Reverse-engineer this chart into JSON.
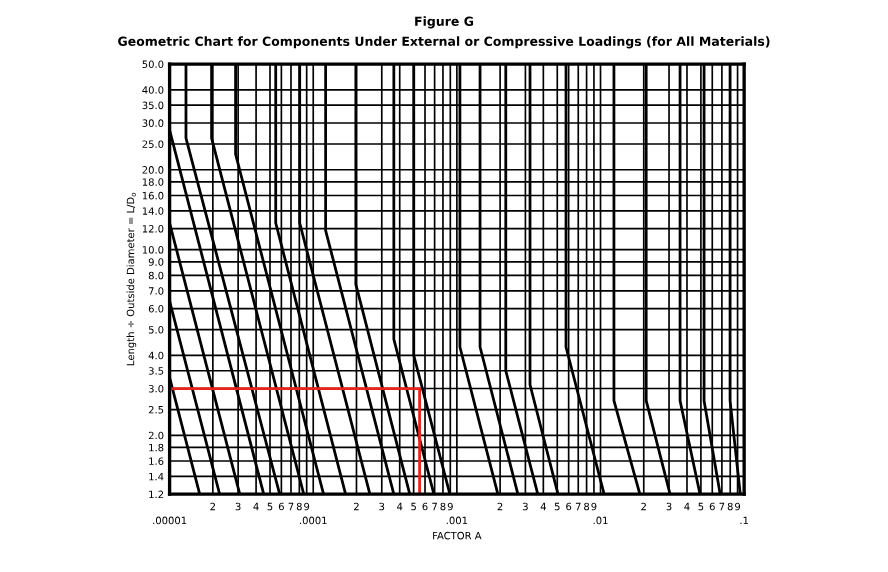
{
  "chart_data": {
    "type": "line",
    "title": "Figure G",
    "subtitle": "Geometric Chart for Components Under External or Compressive Loadings (for All Materials)",
    "xlabel": "FACTOR A",
    "ylabel": "Length ÷ Outside Diameter = L/D$_{o}$",
    "log": "xy",
    "grid": true,
    "legend": false,
    "marker": "none",
    "line_style": "solid",
    "xlim": [
      1e-05,
      0.1
    ],
    "ylim": [
      1.2,
      50
    ],
    "xticks": [
      {
        "value": 1e-05,
        "label": ".00001"
      },
      {
        "value": 2e-05,
        "label": null
      },
      {
        "value": 3e-05,
        "label": null
      },
      {
        "value": 4e-05,
        "label": null
      },
      {
        "value": 5e-05,
        "label": null
      },
      {
        "value": 6e-05,
        "label": null
      },
      {
        "value": 7e-05,
        "label": null
      },
      {
        "value": 8e-05,
        "label": null
      },
      {
        "value": 9e-05,
        "label": null
      },
      {
        "value": 0.0001,
        "label": ".0001"
      },
      {
        "value": 0.0002,
        "label": null
      },
      {
        "value": 0.0003,
        "label": null
      },
      {
        "value": 0.0004,
        "label": null
      },
      {
        "value": 0.0005,
        "label": null
      },
      {
        "value": 0.0006,
        "label": null
      },
      {
        "value": 0.0007,
        "label": null
      },
      {
        "value": 0.0008,
        "label": null
      },
      {
        "value": 0.0009,
        "label": null
      },
      {
        "value": 0.001,
        "label": ".001"
      },
      {
        "value": 0.002,
        "label": null
      },
      {
        "value": 0.003,
        "label": null
      },
      {
        "value": 0.004,
        "label": null
      },
      {
        "value": 0.005,
        "label": null
      },
      {
        "value": 0.006,
        "label": null
      },
      {
        "value": 0.007,
        "label": null
      },
      {
        "value": 0.008,
        "label": null
      },
      {
        "value": 0.009,
        "label": null
      },
      {
        "value": 0.01,
        "label": ".01"
      },
      {
        "value": 0.02,
        "label": null
      },
      {
        "value": 0.03,
        "label": null
      },
      {
        "value": 0.04,
        "label": null
      },
      {
        "value": 0.05,
        "label": null
      },
      {
        "value": 0.06,
        "label": null
      },
      {
        "value": 0.07,
        "label": null
      },
      {
        "value": 0.08,
        "label": null
      },
      {
        "value": 0.09,
        "label": null
      },
      {
        "value": 0.1,
        "label": ".1"
      }
    ],
    "annotations": [
      "2",
      "3",
      "4",
      "5",
      "6",
      "7",
      "8",
      "9",
      "2",
      "3",
      "4",
      "5",
      "6",
      "7",
      "8",
      "9",
      "2",
      "3",
      "4",
      "5",
      "6",
      "7",
      "8",
      "9",
      "2",
      "3",
      "4",
      "5",
      "6",
      "7",
      "8",
      "9"
    ],
    "yticks": [
      {
        "value": 1.2,
        "label": "1.2"
      },
      {
        "value": 1.4,
        "label": "1.4"
      },
      {
        "value": 1.6,
        "label": "1.6"
      },
      {
        "value": 1.8,
        "label": "1.8"
      },
      {
        "value": 2.0,
        "label": "2.0"
      },
      {
        "value": 2.5,
        "label": "2.5"
      },
      {
        "value": 3.0,
        "label": "3.0"
      },
      {
        "value": 3.5,
        "label": "3.5"
      },
      {
        "value": 4.0,
        "label": "4.0"
      },
      {
        "value": 5.0,
        "label": "5.0"
      },
      {
        "value": 6.0,
        "label": "6.0"
      },
      {
        "value": 7.0,
        "label": "7.0"
      },
      {
        "value": 8.0,
        "label": "8.0"
      },
      {
        "value": 9.0,
        "label": "9.0"
      },
      {
        "value": 10.0,
        "label": "10.0"
      },
      {
        "value": 12.0,
        "label": "12.0"
      },
      {
        "value": 14.0,
        "label": "14.0"
      },
      {
        "value": 16.0,
        "label": "16.0"
      },
      {
        "value": 18.0,
        "label": "18.0"
      },
      {
        "value": 20.0,
        "label": "20.0"
      },
      {
        "value": 25.0,
        "label": "25.0"
      },
      {
        "value": 30.0,
        "label": "30.0"
      },
      {
        "value": 35.0,
        "label": "35.0"
      },
      {
        "value": 40.0,
        "label": "40.0"
      },
      {
        "value": 50.0,
        "label": "50.0"
      }
    ],
    "series": [
      {
        "color": "#000000",
        "x": [
          1e-05,
          1.62e-05
        ],
        "values": [
          3.3,
          1.2
        ]
      },
      {
        "color": "#000000",
        "x": [
          1e-05,
          2.23e-05
        ],
        "values": [
          6.4,
          1.2
        ]
      },
      {
        "color": "#000000",
        "x": [
          1e-05,
          3.08e-05
        ],
        "values": [
          12.6,
          1.2
        ]
      },
      {
        "color": "#000000",
        "x": [
          1e-05,
          4.52e-05
        ],
        "values": [
          28.2,
          1.2
        ]
      },
      {
        "color": "#000000",
        "x": [
          1.3e-05,
          1.3e-05,
          5.84e-05
        ],
        "values": [
          50,
          26.3,
          1.2
        ]
      },
      {
        "color": "#000000",
        "x": [
          1.96e-05,
          1.96e-05,
          8.59e-05
        ],
        "values": [
          50,
          26.3,
          1.2
        ]
      },
      {
        "color": "#000000",
        "x": [
          2.88e-05,
          2.88e-05,
          0.000118
        ],
        "values": [
          50,
          22.9,
          1.2
        ]
      },
      {
        "color": "#000000",
        "x": [
          5.48e-05,
          5.48e-05,
          0.000168
        ],
        "values": [
          50,
          12.6,
          1.2
        ]
      },
      {
        "color": "#000000",
        "x": [
          8.05e-05,
          8.05e-05,
          0.000248
        ],
        "values": [
          50,
          12.6,
          1.2
        ]
      },
      {
        "color": "#000000",
        "x": [
          0.000122,
          0.000122,
          0.000364
        ],
        "values": [
          50,
          11.8,
          1.2
        ]
      },
      {
        "color": "#000000",
        "x": [
          0.000198,
          0.000198,
          0.00047
        ],
        "values": [
          50,
          7.4,
          1.2
        ]
      },
      {
        "color": "#000000",
        "x": [
          0.000364,
          0.000364,
          0.000692
        ],
        "values": [
          50,
          4.6,
          1.2
        ]
      },
      {
        "color": "#000000",
        "x": [
          0.000501,
          0.000501,
          0.000894
        ],
        "values": [
          50,
          4.0,
          1.2
        ]
      },
      {
        "color": "#000000",
        "x": [
          0.00105,
          0.00105,
          0.00193
        ],
        "values": [
          50,
          4.3,
          1.2
        ]
      },
      {
        "color": "#000000",
        "x": [
          0.00145,
          0.00145,
          0.00266
        ],
        "values": [
          50,
          4.3,
          1.2
        ]
      },
      {
        "color": "#000000",
        "x": [
          0.00219,
          0.00219,
          0.00366
        ],
        "values": [
          50,
          3.5,
          1.2
        ]
      },
      {
        "color": "#000000",
        "x": [
          0.00323,
          0.00323,
          0.00506
        ],
        "values": [
          50,
          3.1,
          1.2
        ]
      },
      {
        "color": "#000000",
        "x": [
          0.00575,
          0.00575,
          0.0106
        ],
        "values": [
          50,
          4.3,
          1.2
        ]
      },
      {
        "color": "#000000",
        "x": [
          0.0124,
          0.0124,
          0.0188
        ],
        "values": [
          50,
          2.7,
          1.2
        ]
      },
      {
        "color": "#000000",
        "x": [
          0.0208,
          0.0208,
          0.0305
        ],
        "values": [
          50,
          2.7,
          1.2
        ]
      },
      {
        "color": "#000000",
        "x": [
          0.0358,
          0.0358,
          0.0493
        ],
        "values": [
          50,
          2.7,
          1.2
        ]
      },
      {
        "color": "#000000",
        "x": [
          0.0526,
          0.0526,
          0.0681
        ],
        "values": [
          50,
          2.7,
          1.2
        ]
      },
      {
        "color": "#000000",
        "x": [
          0.0798,
          0.0798,
          0.094
        ],
        "values": [
          50,
          2.7,
          1.2
        ]
      },
      {
        "color": "#e8231c",
        "x": [
          1e-05,
          0.00055,
          0.00055
        ],
        "values": [
          3.0,
          3.0,
          1.2
        ]
      }
    ]
  }
}
